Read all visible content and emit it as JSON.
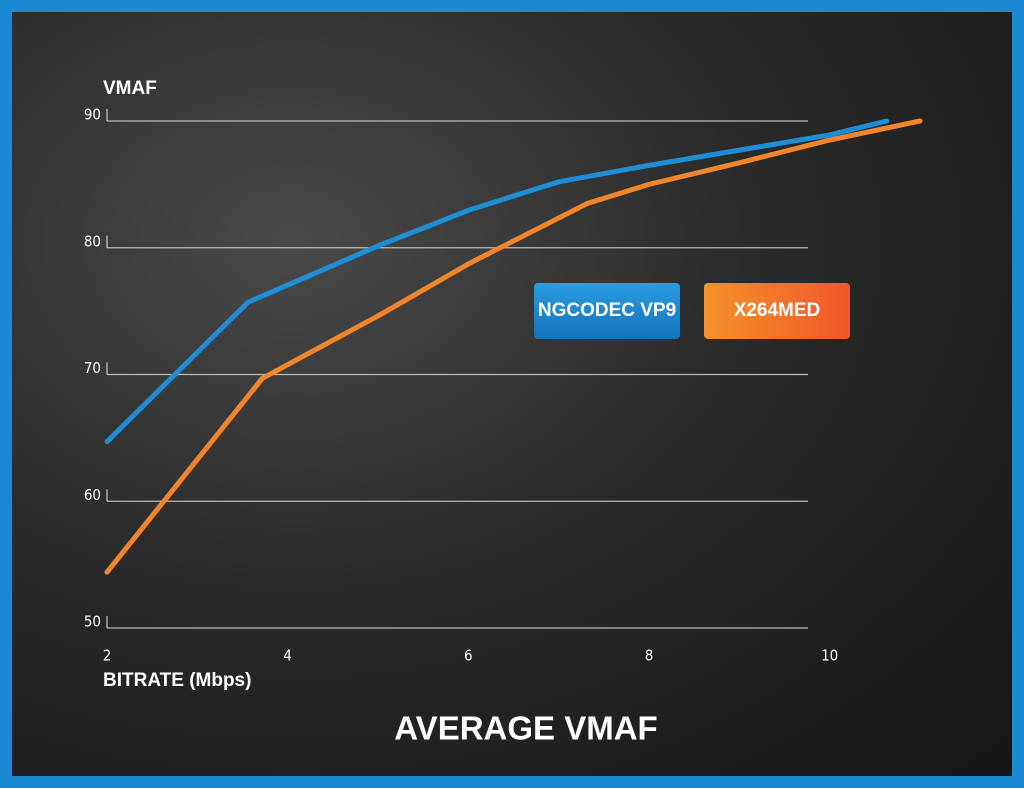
{
  "chart_data": {
    "type": "line",
    "title": "AVERAGE VMAF",
    "y_label": "VMAF",
    "x_label": "BITRATE (Mbps)",
    "xlim": [
      2,
      11
    ],
    "xticks": [
      2,
      4,
      6,
      8,
      10
    ],
    "ylim": [
      50,
      90
    ],
    "yticks": [
      50,
      60,
      70,
      80,
      90
    ],
    "grid": true,
    "series": [
      {
        "name": "NGCODEC VP9",
        "color": "#1e8fd6",
        "x": [
          2,
          3.56,
          5.02,
          6.02,
          7.0,
          8.0,
          9.0,
          10.0,
          10.63
        ],
        "values": [
          64.7,
          75.7,
          80.2,
          83.0,
          85.2,
          86.5,
          87.7,
          88.9,
          90
        ]
      },
      {
        "name": "X264MED",
        "color": "#f3862a",
        "x": [
          2,
          3.72,
          5.02,
          6.02,
          7.32,
          8.0,
          9.0,
          10.0,
          11.0
        ],
        "values": [
          54.4,
          69.7,
          74.7,
          78.8,
          83.5,
          85.0,
          86.7,
          88.5,
          90
        ]
      }
    ]
  }
}
